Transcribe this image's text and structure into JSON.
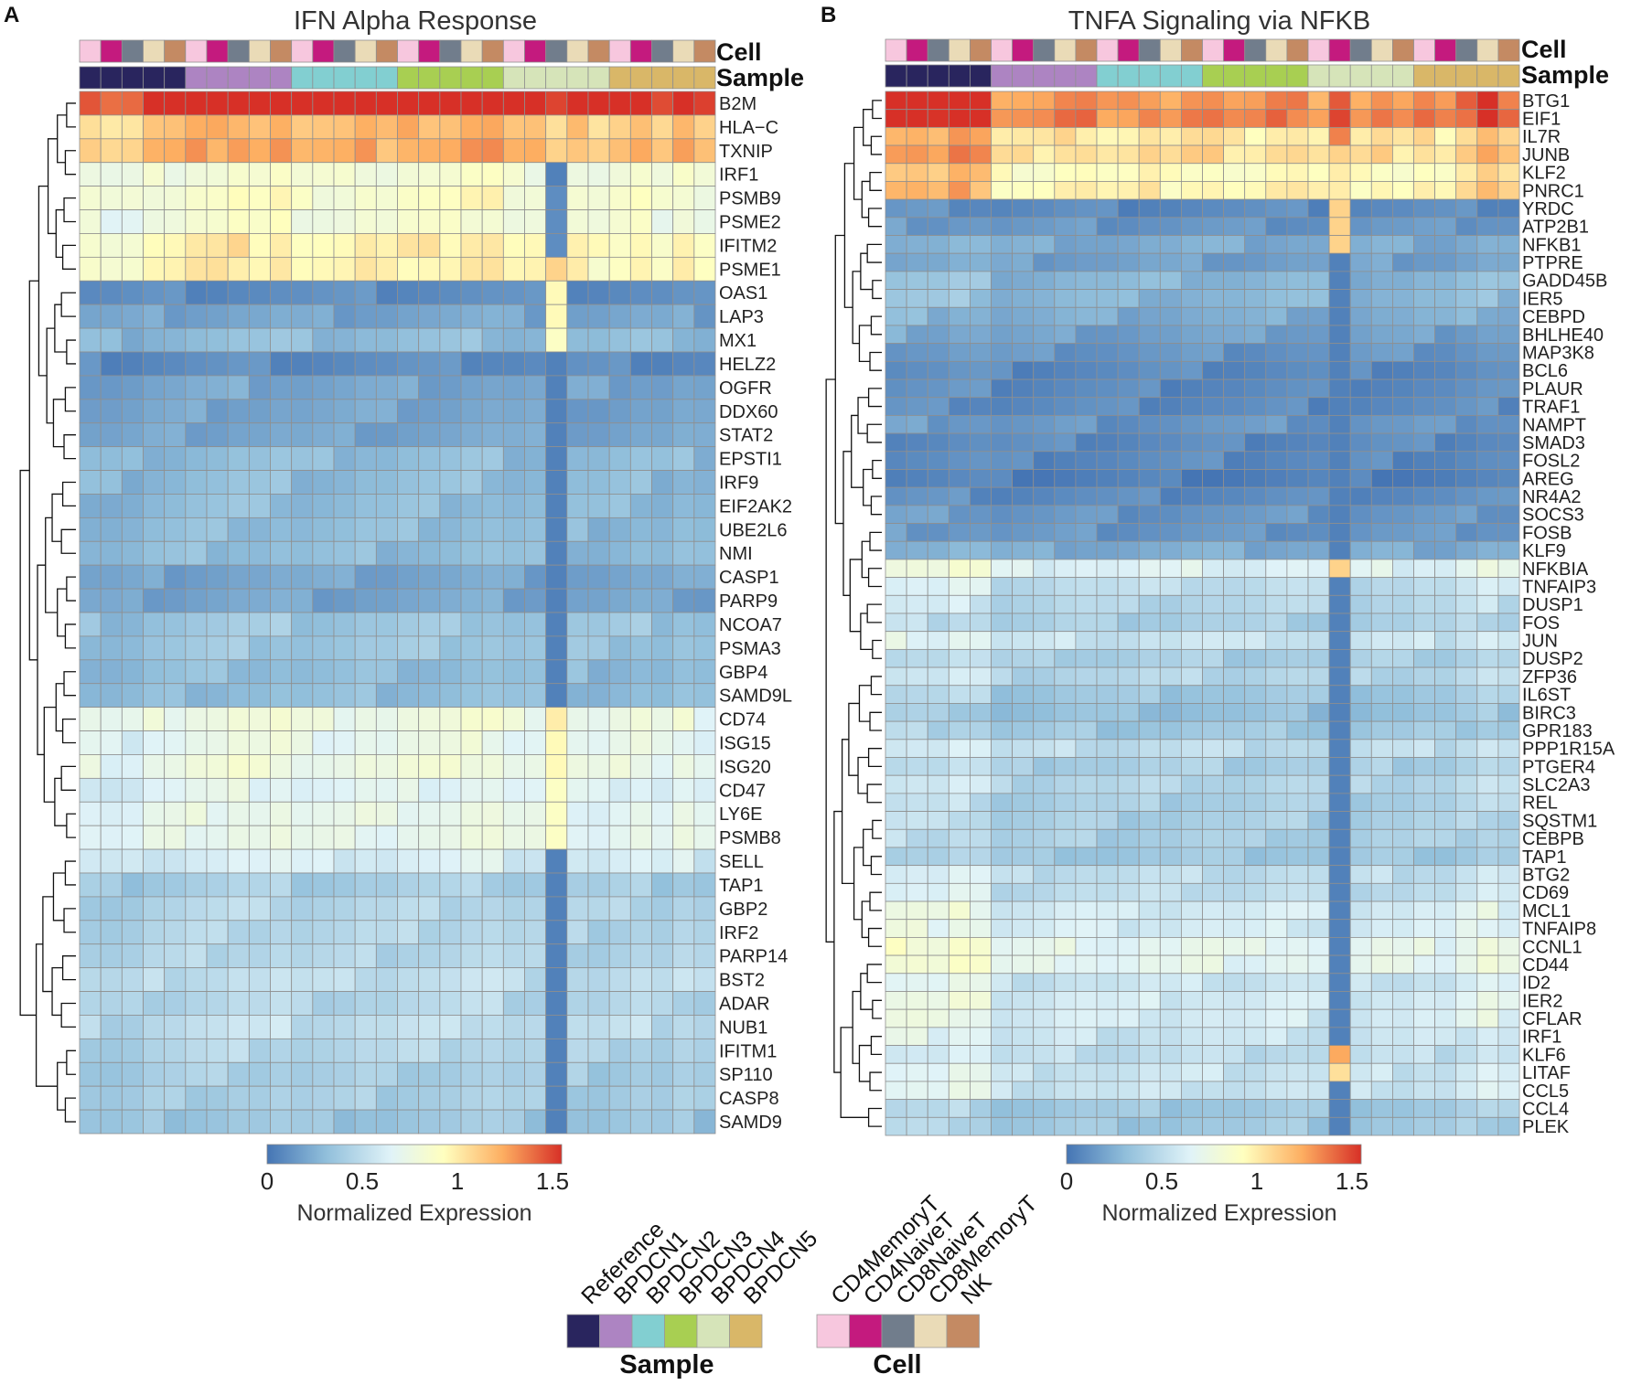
{
  "panel_labels": [
    "A",
    "B"
  ],
  "colors": {
    "cell": [
      "#f7c7de",
      "#c41a7e",
      "#717d8c",
      "#eadbb7",
      "#c48a63"
    ],
    "sample": [
      "#29255e",
      "#ad84c2",
      "#82cfd1",
      "#a8cf52",
      "#d6e4b9",
      "#d9b768"
    ]
  },
  "legends": {
    "sample_title": "Sample",
    "sample_items": [
      "Reference",
      "BPDCN1",
      "BPDCN2",
      "BPDCN3",
      "BPDCN4",
      "BPDCN5"
    ],
    "cell_title": "Cell",
    "cell_items": [
      "CD4MemoryT",
      "CD4NaiveT",
      "CD8NaiveT",
      "CD8MemoryT",
      "NK"
    ]
  },
  "chart_data": [
    {
      "type": "heatmap",
      "title": "IFN Alpha Response",
      "annotation_labels": {
        "cell": "Cell",
        "sample": "Sample"
      },
      "cell_annotation": [
        "CD4MemoryT",
        "CD4NaiveT",
        "CD8NaiveT",
        "CD8MemoryT",
        "NK",
        "CD4MemoryT",
        "CD4NaiveT",
        "CD8NaiveT",
        "CD8MemoryT",
        "NK",
        "CD4MemoryT",
        "CD4NaiveT",
        "CD8NaiveT",
        "CD8MemoryT",
        "NK",
        "CD4MemoryT",
        "CD4NaiveT",
        "CD8NaiveT",
        "CD8MemoryT",
        "NK",
        "CD4MemoryT",
        "CD4NaiveT",
        "CD8NaiveT",
        "CD8MemoryT",
        "NK",
        "CD4MemoryT",
        "CD4NaiveT",
        "CD8NaiveT",
        "CD8MemoryT",
        "NK"
      ],
      "sample_annotation": [
        "Reference",
        "Reference",
        "Reference",
        "Reference",
        "Reference",
        "BPDCN1",
        "BPDCN1",
        "BPDCN1",
        "BPDCN1",
        "BPDCN1",
        "BPDCN2",
        "BPDCN2",
        "BPDCN2",
        "BPDCN2",
        "BPDCN2",
        "BPDCN3",
        "BPDCN3",
        "BPDCN3",
        "BPDCN3",
        "BPDCN3",
        "BPDCN4",
        "BPDCN4",
        "BPDCN4",
        "BPDCN4",
        "BPDCN4",
        "BPDCN5",
        "BPDCN5",
        "BPDCN5",
        "BPDCN5",
        "BPDCN5"
      ],
      "genes": [
        "B2M",
        "HLA−C",
        "TXNIP",
        "IRF1",
        "PSMB9",
        "PSME2",
        "IFITM2",
        "PSME1",
        "OAS1",
        "LAP3",
        "MX1",
        "HELZ2",
        "OGFR",
        "DDX60",
        "STAT2",
        "EPSTI1",
        "IRF9",
        "EIF2AK2",
        "UBE2L6",
        "NMI",
        "CASP1",
        "PARP9",
        "NCOA7",
        "PSMA3",
        "GBP4",
        "SAMD9L",
        "CD74",
        "ISG15",
        "ISG20",
        "CD47",
        "LY6E",
        "PSMB8",
        "SELL",
        "TAP1",
        "GBP2",
        "IRF2",
        "PARP14",
        "BST2",
        "ADAR",
        "NUB1",
        "IFITM1",
        "SP110",
        "CASP8",
        "SAMD9"
      ],
      "row_values": [
        1.6,
        1.15,
        1.2,
        0.8,
        0.85,
        0.8,
        0.95,
        0.95,
        0.1,
        0.2,
        0.3,
        0.1,
        0.2,
        0.2,
        0.2,
        0.3,
        0.3,
        0.3,
        0.3,
        0.3,
        0.2,
        0.2,
        0.35,
        0.35,
        0.3,
        0.3,
        0.75,
        0.7,
        0.75,
        0.65,
        0.7,
        0.7,
        0.6,
        0.4,
        0.45,
        0.45,
        0.45,
        0.5,
        0.45,
        0.5,
        0.45,
        0.4,
        0.4,
        0.35
      ],
      "column_profile": [
        0.95,
        0.9,
        0.9,
        1.0,
        1.0,
        1.05,
        1.05,
        1.1,
        1.05,
        1.1,
        1.0,
        1.0,
        1.0,
        1.05,
        1.0,
        1.05,
        1.05,
        1.05,
        1.1,
        1.1,
        1.0,
        1.0,
        1.0,
        1.0,
        0.95,
        1.0,
        1.05,
        0.95,
        1.05,
        0.95
      ],
      "outlier_column": 22,
      "outlier_values": [
        1.5,
        1.05,
        1.1,
        0.05,
        0.1,
        0.1,
        0.1,
        1.1,
        0.95,
        0.95,
        0.9,
        0.05,
        0.05,
        0.05,
        0.05,
        0.05,
        0.05,
        0.05,
        0.05,
        0.05,
        0.05,
        0.05,
        0.05,
        0.05,
        0.05,
        0.05,
        1.0,
        0.95,
        0.95,
        0.9,
        0.9,
        0.9,
        0.05,
        0.05,
        0.05,
        0.05,
        0.05,
        0.05,
        0.05,
        0.05,
        0.05,
        0.05,
        0.05,
        0.05
      ],
      "colorbar": {
        "ticks": [
          "0",
          "0.5",
          "1",
          "1.5"
        ],
        "label": "Normalized Expression",
        "range": [
          0,
          1.55
        ]
      }
    },
    {
      "type": "heatmap",
      "title": "TNFA Signaling via NFKB",
      "annotation_labels": {
        "cell": "Cell",
        "sample": "Sample"
      },
      "cell_annotation": [
        "CD4MemoryT",
        "CD4NaiveT",
        "CD8NaiveT",
        "CD8MemoryT",
        "NK",
        "CD4MemoryT",
        "CD4NaiveT",
        "CD8NaiveT",
        "CD8MemoryT",
        "NK",
        "CD4MemoryT",
        "CD4NaiveT",
        "CD8NaiveT",
        "CD8MemoryT",
        "NK",
        "CD4MemoryT",
        "CD4NaiveT",
        "CD8NaiveT",
        "CD8MemoryT",
        "NK",
        "CD4MemoryT",
        "CD4NaiveT",
        "CD8NaiveT",
        "CD8MemoryT",
        "NK",
        "CD4MemoryT",
        "CD4NaiveT",
        "CD8NaiveT",
        "CD8MemoryT",
        "NK"
      ],
      "sample_annotation": [
        "Reference",
        "Reference",
        "Reference",
        "Reference",
        "Reference",
        "BPDCN1",
        "BPDCN1",
        "BPDCN1",
        "BPDCN1",
        "BPDCN1",
        "BPDCN2",
        "BPDCN2",
        "BPDCN2",
        "BPDCN2",
        "BPDCN2",
        "BPDCN3",
        "BPDCN3",
        "BPDCN3",
        "BPDCN3",
        "BPDCN3",
        "BPDCN4",
        "BPDCN4",
        "BPDCN4",
        "BPDCN4",
        "BPDCN4",
        "BPDCN5",
        "BPDCN5",
        "BPDCN5",
        "BPDCN5",
        "BPDCN5"
      ],
      "genes": [
        "BTG1",
        "EIF1",
        "IL7R",
        "JUNB",
        "KLF2",
        "PNRC1",
        "YRDC",
        "ATP2B1",
        "NFKB1",
        "PTPRE",
        "GADD45B",
        "IER5",
        "CEBPD",
        "BHLHE40",
        "MAP3K8",
        "BCL6",
        "PLAUR",
        "TRAF1",
        "NAMPT",
        "SMAD3",
        "FOSL2",
        "AREG",
        "NR4A2",
        "SOCS3",
        "FOSB",
        "KLF9",
        "NFKBIA",
        "TNFAIP3",
        "DUSP1",
        "FOS",
        "JUN",
        "DUSP2",
        "ZFP36",
        "IL6ST",
        "BIRC3",
        "GPR183",
        "PPP1R15A",
        "PTGER4",
        "SLC2A3",
        "REL",
        "SQSTM1",
        "CEBPB",
        "TAP1",
        "BTG2",
        "CD69",
        "MCL1",
        "TNFAIP8",
        "CCNL1",
        "CD44",
        "ID2",
        "IER2",
        "CFLAR",
        "IRF1",
        "KLF6",
        "LITAF",
        "CCL5",
        "CCL4",
        "PLEK"
      ],
      "row_values": [
        1.4,
        1.45,
        1.1,
        1.15,
        1.0,
        1.05,
        0.1,
        0.15,
        0.25,
        0.2,
        0.3,
        0.3,
        0.25,
        0.2,
        0.15,
        0.1,
        0.1,
        0.1,
        0.15,
        0.1,
        0.1,
        0.05,
        0.1,
        0.15,
        0.15,
        0.25,
        0.7,
        0.55,
        0.5,
        0.45,
        0.6,
        0.45,
        0.5,
        0.4,
        0.35,
        0.4,
        0.55,
        0.45,
        0.5,
        0.45,
        0.45,
        0.45,
        0.4,
        0.55,
        0.55,
        0.65,
        0.65,
        0.75,
        0.75,
        0.6,
        0.65,
        0.65,
        0.6,
        0.55,
        0.6,
        0.6,
        0.4,
        0.4
      ],
      "column_profile": [
        1.15,
        1.15,
        1.1,
        1.2,
        1.15,
        0.9,
        0.9,
        0.9,
        0.95,
        0.95,
        0.9,
        0.9,
        0.95,
        0.9,
        0.95,
        0.95,
        0.9,
        0.9,
        0.95,
        0.95,
        0.9,
        0.9,
        0.9,
        0.95,
        0.9,
        0.95,
        0.9,
        1.0,
        1.1,
        1.0
      ],
      "outlier_column": 21,
      "outlier_values": [
        1.45,
        1.5,
        1.35,
        1.1,
        1.0,
        1.0,
        1.1,
        1.1,
        1.1,
        0.05,
        0.05,
        0.05,
        0.05,
        0.05,
        0.05,
        0.05,
        0.05,
        0.05,
        0.05,
        0.05,
        0.05,
        0.05,
        0.05,
        0.05,
        0.05,
        0.05,
        1.1,
        0.05,
        0.05,
        0.05,
        0.05,
        0.05,
        0.05,
        0.05,
        0.05,
        0.05,
        0.05,
        0.05,
        0.05,
        0.05,
        0.05,
        0.05,
        0.05,
        0.05,
        0.05,
        0.05,
        0.05,
        0.05,
        0.05,
        0.05,
        0.05,
        0.05,
        0.05,
        1.25,
        1.05,
        0.05,
        0.05,
        0.05
      ],
      "colorbar": {
        "ticks": [
          "0",
          "0.5",
          "1",
          "1.5"
        ],
        "label": "Normalized Expression",
        "range": [
          0,
          1.55
        ]
      }
    }
  ]
}
